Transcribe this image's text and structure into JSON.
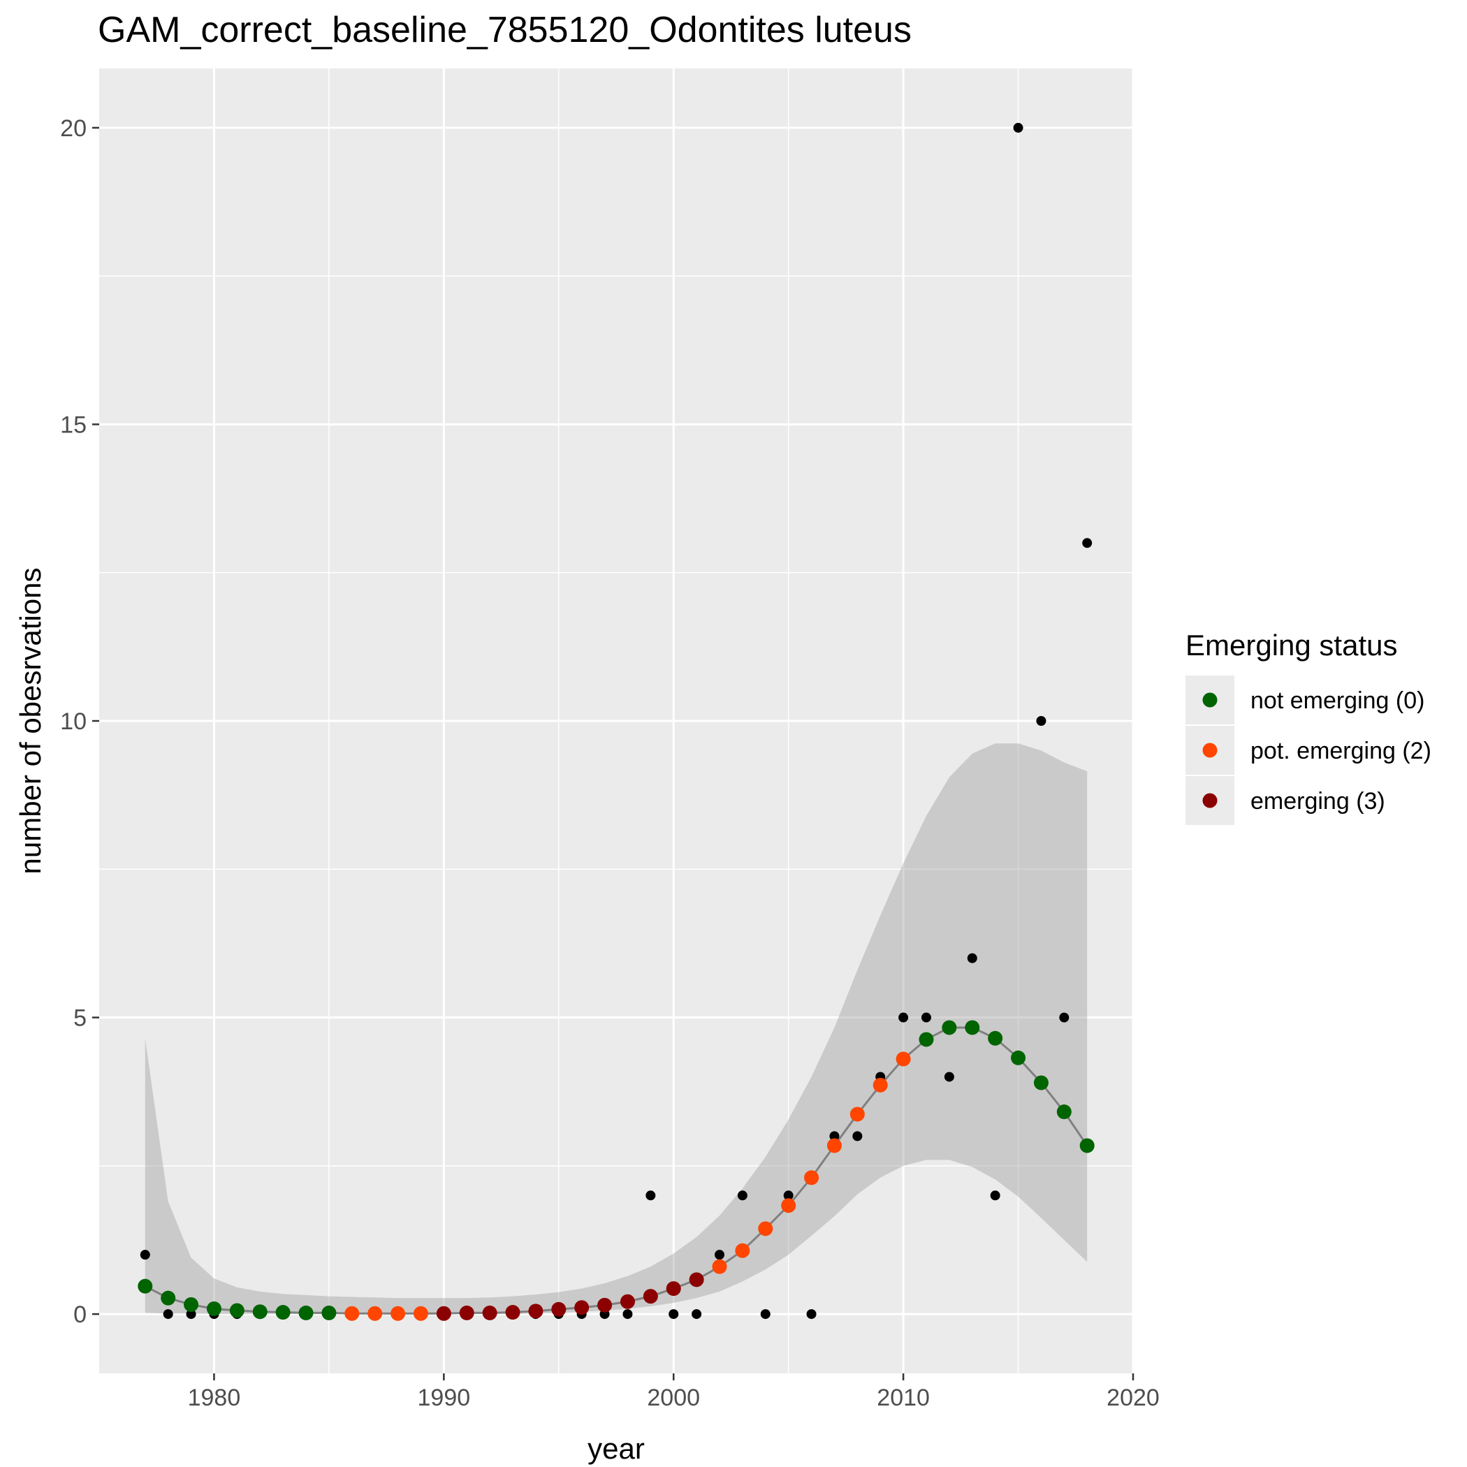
{
  "chart_data": {
    "type": "scatter",
    "title": "GAM_correct_baseline_7855120_Odontites luteus",
    "xlabel": "year",
    "ylabel": "number of obesrvations",
    "xlim": [
      1975,
      2020
    ],
    "ylim": [
      -1,
      21
    ],
    "xticks": [
      1980,
      1990,
      2000,
      2010,
      2020
    ],
    "yticks": [
      0,
      5,
      10,
      15,
      20
    ],
    "grid": true,
    "legend": {
      "title": "Emerging status",
      "placement": "right",
      "entries": [
        {
          "label": "not emerging (0)",
          "color": "#006400"
        },
        {
          "label": "pot. emerging (2)",
          "color": "#FF4500"
        },
        {
          "label": "emerging (3)",
          "color": "#8B0000"
        }
      ]
    },
    "observed": {
      "color": "#000000",
      "x": [
        1977,
        1978,
        1979,
        1980,
        1981,
        1982,
        1983,
        1984,
        1985,
        1986,
        1987,
        1988,
        1989,
        1990,
        1991,
        1992,
        1993,
        1994,
        1995,
        1996,
        1997,
        1998,
        1999,
        2000,
        2001,
        2002,
        2003,
        2004,
        2005,
        2006,
        2007,
        2008,
        2009,
        2010,
        2011,
        2012,
        2013,
        2014,
        2015,
        2016,
        2017,
        2018
      ],
      "y": [
        1,
        0,
        0,
        0,
        0,
        0,
        0,
        0,
        0,
        0,
        0,
        0,
        0,
        0,
        0,
        0,
        0,
        0,
        0,
        0,
        0,
        0,
        2,
        0,
        0,
        1,
        2,
        0,
        2,
        0,
        3,
        3,
        4,
        5,
        5,
        4,
        6,
        2,
        20,
        10,
        5,
        13
      ]
    },
    "fit": {
      "line_color": "#808080",
      "x": [
        1977,
        1978,
        1979,
        1980,
        1981,
        1982,
        1983,
        1984,
        1985,
        1986,
        1987,
        1988,
        1989,
        1990,
        1991,
        1992,
        1993,
        1994,
        1995,
        1996,
        1997,
        1998,
        1999,
        2000,
        2001,
        2002,
        2003,
        2004,
        2005,
        2006,
        2007,
        2008,
        2009,
        2010,
        2011,
        2012,
        2013,
        2014,
        2015,
        2016,
        2017,
        2018
      ],
      "y": [
        0.47,
        0.27,
        0.16,
        0.09,
        0.06,
        0.04,
        0.03,
        0.02,
        0.02,
        0.01,
        0.01,
        0.01,
        0.01,
        0.01,
        0.02,
        0.02,
        0.03,
        0.05,
        0.08,
        0.11,
        0.15,
        0.21,
        0.3,
        0.43,
        0.58,
        0.8,
        1.07,
        1.44,
        1.83,
        2.3,
        2.84,
        3.37,
        3.86,
        4.3,
        4.63,
        4.83,
        4.83,
        4.65,
        4.32,
        3.9,
        3.41,
        2.84
      ],
      "status": [
        0,
        0,
        0,
        0,
        0,
        0,
        0,
        0,
        0,
        2,
        2,
        2,
        2,
        3,
        3,
        3,
        3,
        3,
        3,
        3,
        3,
        3,
        3,
        3,
        3,
        2,
        2,
        2,
        2,
        2,
        2,
        2,
        2,
        2,
        0,
        0,
        0,
        0,
        0,
        0,
        0,
        0
      ],
      "ci_lower": [
        0.02,
        0.01,
        0.01,
        0.0,
        0.0,
        0.0,
        0.0,
        0.0,
        0.0,
        0.0,
        0.0,
        0.0,
        0.0,
        0.0,
        0.0,
        0.0,
        0.0,
        0.01,
        0.02,
        0.04,
        0.06,
        0.09,
        0.13,
        0.19,
        0.27,
        0.38,
        0.55,
        0.75,
        1.0,
        1.32,
        1.65,
        2.02,
        2.3,
        2.5,
        2.6,
        2.6,
        2.48,
        2.27,
        1.98,
        1.62,
        1.25,
        0.88
      ],
      "ci_upper": [
        4.65,
        1.9,
        0.95,
        0.6,
        0.45,
        0.38,
        0.34,
        0.32,
        0.3,
        0.29,
        0.28,
        0.27,
        0.27,
        0.27,
        0.27,
        0.28,
        0.3,
        0.33,
        0.37,
        0.43,
        0.52,
        0.64,
        0.8,
        1.02,
        1.3,
        1.66,
        2.12,
        2.65,
        3.28,
        4.0,
        4.83,
        5.8,
        6.72,
        7.6,
        8.4,
        9.05,
        9.45,
        9.62,
        9.62,
        9.5,
        9.3,
        9.15
      ]
    }
  }
}
